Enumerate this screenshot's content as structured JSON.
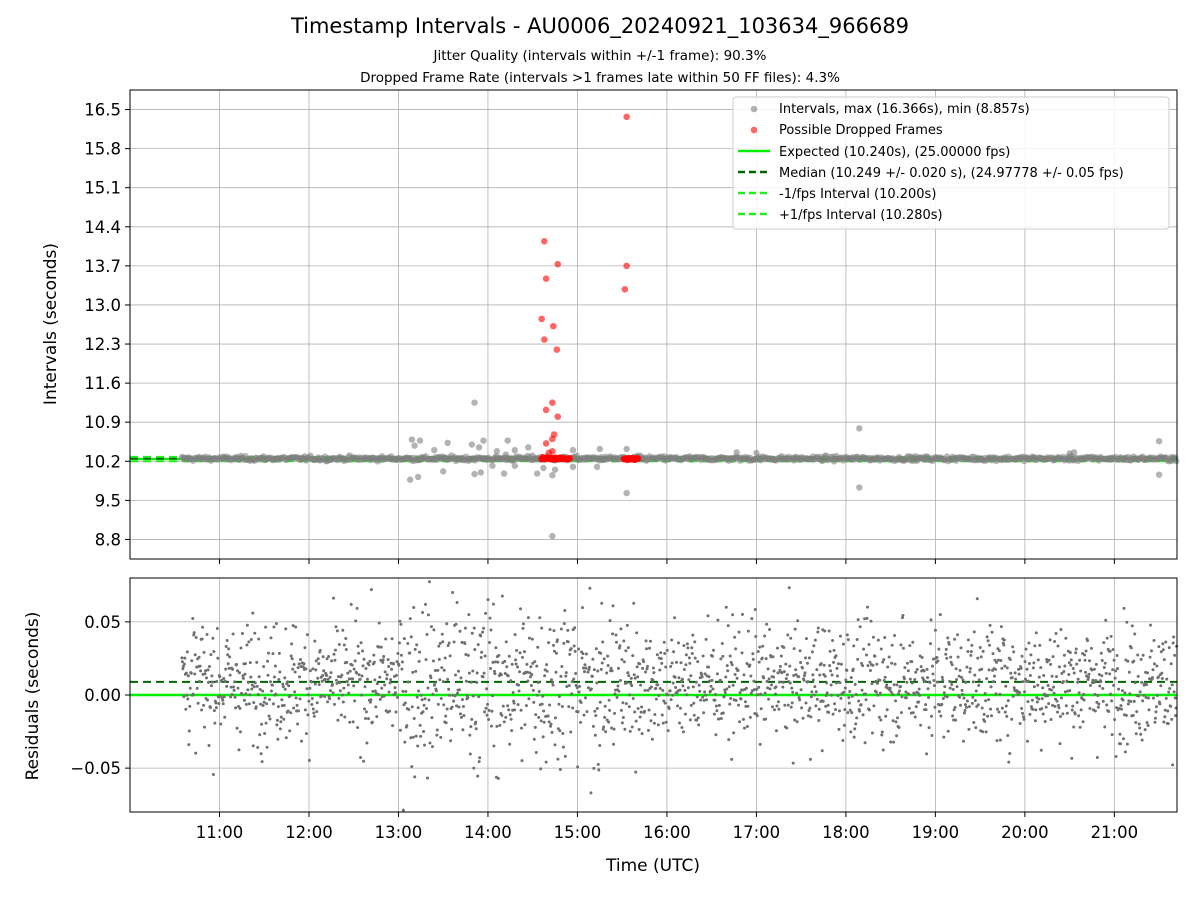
{
  "title": "Timestamp Intervals - AU0006_20240921_103634_966689",
  "subtitles": [
    "Jitter Quality (intervals within +/-1 frame): 90.3%",
    "Dropped Frame Rate (intervals >1 frames late within 50 FF files): 4.3%"
  ],
  "colors": {
    "intervals": "#808080",
    "dropped": "#ff0000",
    "expected": "#00ee00",
    "median": "#006400",
    "fps_band": "#22ee22",
    "residuals": "#707070"
  },
  "chart_data": [
    {
      "type": "scatter",
      "panel": "top",
      "ylabel": "Intervals (seconds)",
      "xlabel": "",
      "x_range_hours": [
        10.0,
        21.7
      ],
      "ylim": [
        8.45,
        16.85
      ],
      "yticks": [
        8.8,
        9.5,
        10.2,
        10.9,
        11.6,
        12.3,
        13.0,
        13.7,
        14.4,
        15.1,
        15.8,
        16.5
      ],
      "ytick_labels": [
        "8.8",
        "9.5",
        "10.2",
        "10.9",
        "11.6",
        "12.3",
        "13.0",
        "13.7",
        "14.4",
        "15.1",
        "15.8",
        "16.5"
      ],
      "grid": true,
      "legend_position": "top-right",
      "legend": [
        "Intervals, max (16.366s), min (8.857s)",
        "Possible Dropped Frames",
        "Expected (10.240s), (25.00000 fps)",
        "Median (10.249 +/- 0.020 s), (24.97778 +/- 0.05 fps)",
        "-1/fps Interval (10.200s)",
        "+1/fps Interval (10.280s)"
      ],
      "reference_lines": {
        "expected": 10.24,
        "median": 10.249,
        "minus_fps": 10.2,
        "plus_fps": 10.28
      },
      "series": [
        {
          "name": "Intervals, max (16.366s), min (8.857s)",
          "points": [
            [
              13.15,
              10.59
            ],
            [
              13.18,
              10.48
            ],
            [
              13.13,
              9.87
            ],
            [
              13.22,
              9.92
            ],
            [
              13.24,
              10.57
            ],
            [
              13.4,
              10.4
            ],
            [
              13.55,
              10.53
            ],
            [
              13.5,
              10.02
            ],
            [
              13.85,
              11.25
            ],
            [
              13.82,
              10.5
            ],
            [
              13.9,
              10.45
            ],
            [
              13.95,
              10.57
            ],
            [
              13.85,
              9.97
            ],
            [
              13.92,
              10.0
            ],
            [
              14.05,
              10.12
            ],
            [
              14.1,
              10.38
            ],
            [
              14.18,
              9.98
            ],
            [
              14.2,
              10.32
            ],
            [
              14.22,
              10.57
            ],
            [
              14.3,
              10.4
            ],
            [
              14.3,
              10.12
            ],
            [
              14.45,
              10.45
            ],
            [
              14.5,
              10.3
            ],
            [
              14.55,
              9.98
            ],
            [
              14.62,
              10.08
            ],
            [
              14.72,
              8.86
            ],
            [
              14.72,
              9.95
            ],
            [
              14.75,
              10.05
            ],
            [
              14.95,
              10.4
            ],
            [
              14.95,
              10.1
            ],
            [
              15.25,
              10.42
            ],
            [
              15.22,
              10.1
            ],
            [
              15.55,
              10.42
            ],
            [
              15.55,
              9.63
            ],
            [
              15.7,
              10.3
            ],
            [
              16.78,
              10.36
            ],
            [
              17.0,
              10.35
            ],
            [
              18.15,
              10.79
            ],
            [
              18.15,
              9.73
            ],
            [
              20.5,
              10.34
            ],
            [
              20.55,
              10.36
            ],
            [
              21.5,
              10.56
            ],
            [
              21.5,
              9.96
            ]
          ]
        },
        {
          "name": "Possible Dropped Frames",
          "points": [
            [
              14.63,
              14.14
            ],
            [
              14.65,
              13.47
            ],
            [
              14.78,
              13.73
            ],
            [
              14.6,
              12.75
            ],
            [
              14.63,
              12.38
            ],
            [
              14.73,
              12.62
            ],
            [
              14.77,
              12.2
            ],
            [
              14.72,
              11.25
            ],
            [
              14.65,
              11.12
            ],
            [
              14.78,
              11.0
            ],
            [
              14.74,
              10.68
            ],
            [
              14.72,
              10.6
            ],
            [
              14.65,
              10.52
            ],
            [
              14.72,
              10.38
            ],
            [
              14.68,
              10.35
            ],
            [
              15.55,
              16.37
            ],
            [
              15.55,
              13.7
            ],
            [
              15.53,
              13.28
            ]
          ]
        }
      ]
    },
    {
      "type": "scatter",
      "panel": "bottom",
      "ylabel": "Residuals (seconds)",
      "xlabel": "Time (UTC)",
      "x_range_hours": [
        10.0,
        21.7
      ],
      "ylim": [
        -0.08,
        0.08
      ],
      "yticks": [
        -0.05,
        0.0,
        0.05
      ],
      "ytick_labels": [
        "−0.05",
        "0.00",
        "0.05"
      ],
      "xticks": [
        11,
        12,
        13,
        14,
        15,
        16,
        17,
        18,
        19,
        20,
        21
      ],
      "xtick_labels": [
        "11:00",
        "12:00",
        "13:00",
        "14:00",
        "15:00",
        "16:00",
        "17:00",
        "18:00",
        "19:00",
        "20:00",
        "21:00"
      ],
      "grid": true,
      "reference_lines": {
        "zero": 0.0,
        "median_offset": 0.009
      },
      "residual_spread_sd": 0.02,
      "data_start_hour": 10.58
    }
  ]
}
